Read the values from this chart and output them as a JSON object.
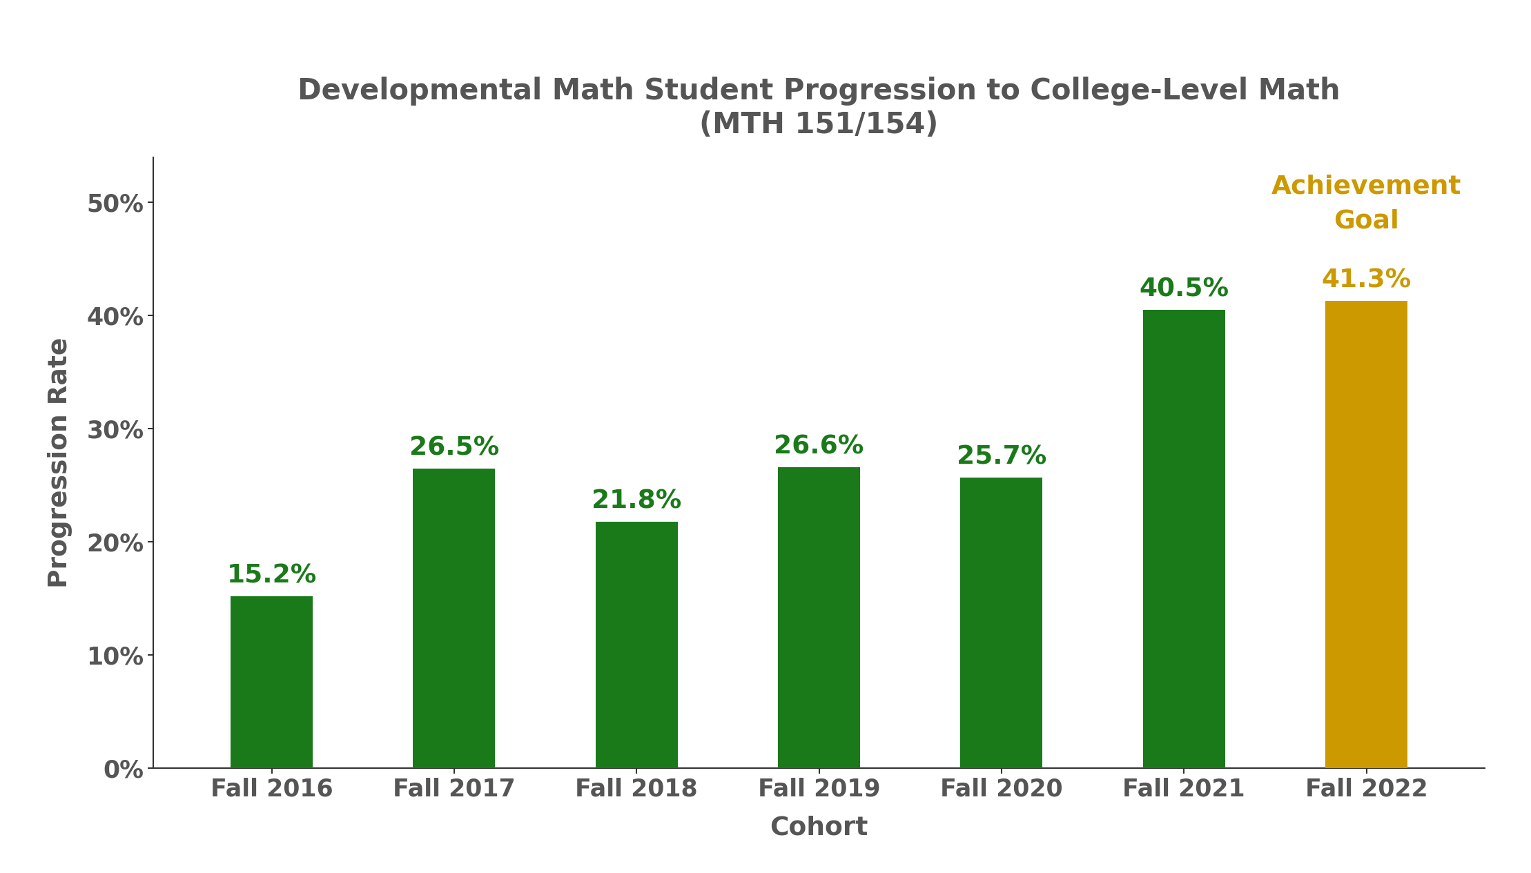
{
  "title_line1": "Developmental Math Student Progression to College-Level Math",
  "title_line2": "(MTH 151/154)",
  "xlabel": "Cohort",
  "ylabel": "Progression Rate",
  "categories": [
    "Fall 2016",
    "Fall 2017",
    "Fall 2018",
    "Fall 2019",
    "Fall 2020",
    "Fall 2021",
    "Fall 2022"
  ],
  "values": [
    15.2,
    26.5,
    21.8,
    26.6,
    25.7,
    40.5,
    41.3
  ],
  "bar_colors": [
    "#1a7a1a",
    "#1a7a1a",
    "#1a7a1a",
    "#1a7a1a",
    "#1a7a1a",
    "#1a7a1a",
    "#cc9900"
  ],
  "label_colors": [
    "#1a7a1a",
    "#1a7a1a",
    "#1a7a1a",
    "#1a7a1a",
    "#1a7a1a",
    "#1a7a1a",
    "#cc9900"
  ],
  "yticks": [
    0,
    10,
    20,
    30,
    40,
    50
  ],
  "ytick_labels": [
    "0%",
    "10%",
    "20%",
    "30%",
    "40%",
    "50%"
  ],
  "ylim": [
    0,
    54
  ],
  "achievement_label": "Achievement\nGoal",
  "achievement_color": "#cc9900",
  "title_color": "#555555",
  "axis_label_color": "#555555",
  "tick_label_color": "#555555",
  "background_color": "#ffffff",
  "title_fontsize": 30,
  "label_fontsize": 27,
  "axis_label_fontsize": 27,
  "tick_fontsize": 25,
  "achievement_fontsize": 27,
  "bar_width": 0.45
}
